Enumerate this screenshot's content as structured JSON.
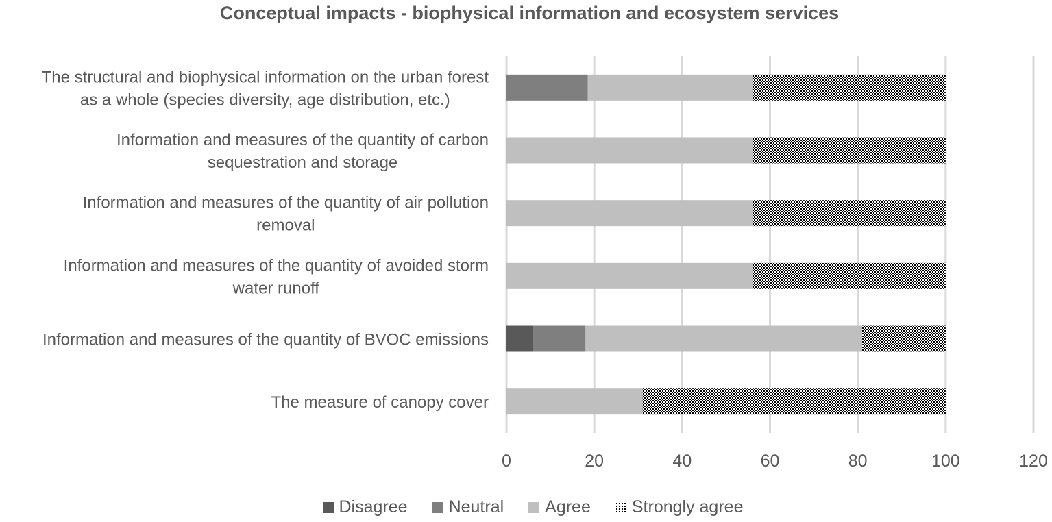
{
  "chart_data": {
    "type": "bar",
    "orientation": "horizontal",
    "stacked": true,
    "title": "Conceptual impacts - biophysical information and ecosystem services",
    "xlabel": "",
    "ylabel": "",
    "xlim": [
      0,
      120
    ],
    "x_ticks": [
      0,
      20,
      40,
      60,
      80,
      100,
      120
    ],
    "grid": "vertical",
    "legend_position": "bottom",
    "categories": [
      [
        "The structural and biophysical information on the urban forest",
        "as a whole (species diversity, age distribution, etc.)"
      ],
      [
        "Information and measures of the quantity of carbon",
        "sequestration and storage"
      ],
      [
        "Information and measures of the quantity of air pollution",
        "removal"
      ],
      [
        "Information and measures of the quantity of avoided storm",
        "water runoff"
      ],
      [
        "Information and measures of the quantity of BVOC emissions"
      ],
      [
        "The measure of canopy cover"
      ]
    ],
    "series": [
      {
        "name": "Disagree",
        "color": "#595959",
        "pattern": "solid",
        "values": [
          0,
          0,
          0,
          0,
          6,
          0
        ]
      },
      {
        "name": "Neutral",
        "color": "#7f7f7f",
        "pattern": "solid",
        "values": [
          18.5,
          0,
          0,
          0,
          12,
          0
        ]
      },
      {
        "name": "Agree",
        "color": "#bfbfbf",
        "pattern": "solid",
        "values": [
          37.5,
          56,
          56,
          56,
          63,
          31
        ]
      },
      {
        "name": "Strongly agree",
        "color": "#000000",
        "pattern": "dotted",
        "values": [
          44,
          44,
          44,
          44,
          19,
          69
        ]
      }
    ]
  }
}
